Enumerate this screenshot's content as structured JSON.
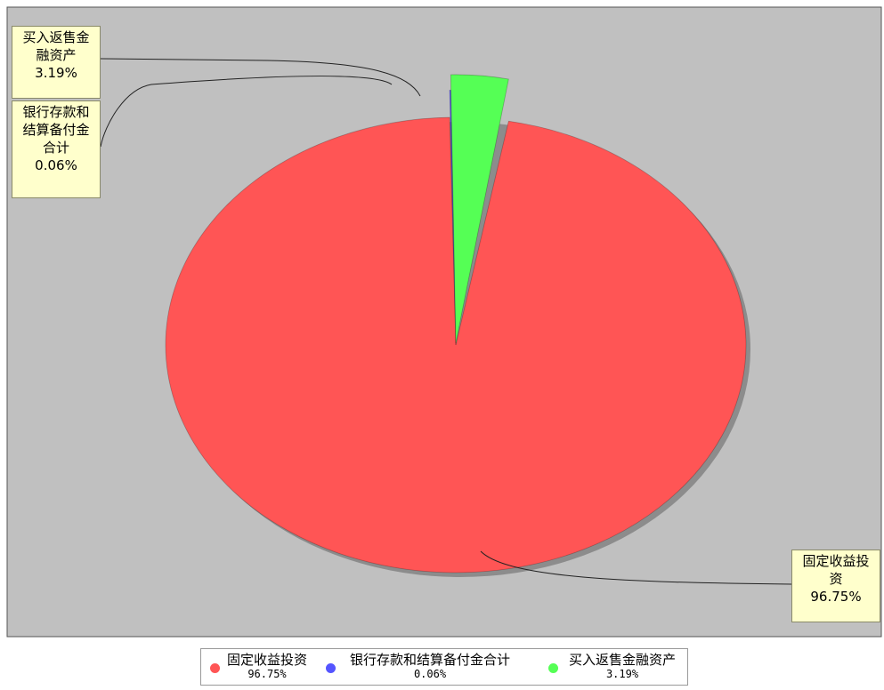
{
  "chart_data": {
    "type": "pie",
    "title": "",
    "slices": [
      {
        "label": "固定收益投资",
        "label_box": "固定收益投\n资\n96.75%",
        "value": 96.75,
        "value_text": "96.75%",
        "legend_value": "96.75%",
        "color": "#ff5555"
      },
      {
        "label": "银行存款和结算备付金合计",
        "label_box": "银行存款和\n结算备付金\n合计\n0.06%",
        "value": 0.06,
        "value_text": "0.06%",
        "legend_value": "0.06%",
        "color": "#5555ff"
      },
      {
        "label": "买入返售金融资产",
        "label_box": "买入返售金\n融资产\n3.19%",
        "value": 3.19,
        "value_text": "3.19%",
        "legend_value": "3.19%",
        "color": "#55ff55"
      }
    ],
    "legend_position": "bottom",
    "plot_background": "#c0c0c0"
  }
}
